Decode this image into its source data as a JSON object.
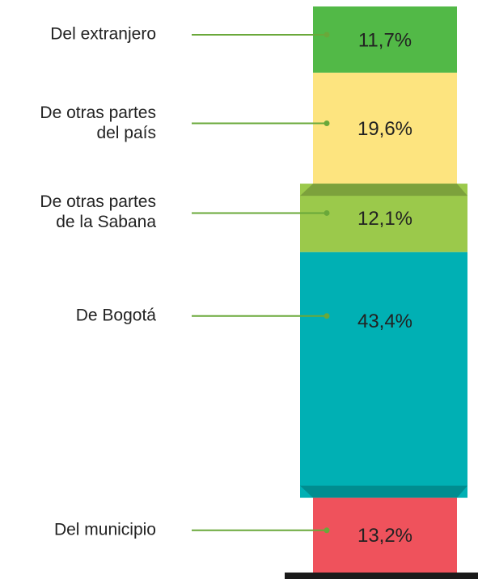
{
  "chart_data": {
    "type": "stacked-column",
    "categories": [
      "Del extranjero",
      "De otras partes\ndel país",
      "De otras partes\nde la Sabana",
      "De Bogotá",
      "Del municipio"
    ],
    "values": [
      11.7,
      19.6,
      12.1,
      43.4,
      13.2
    ],
    "value_labels": [
      "11,7%",
      "19,6%",
      "12,1%",
      "43,4%",
      "13,2%"
    ],
    "colors": [
      "#52b947",
      "#fde47f",
      "#9bc94b",
      "#00b0b4",
      "#ef525c"
    ]
  }
}
